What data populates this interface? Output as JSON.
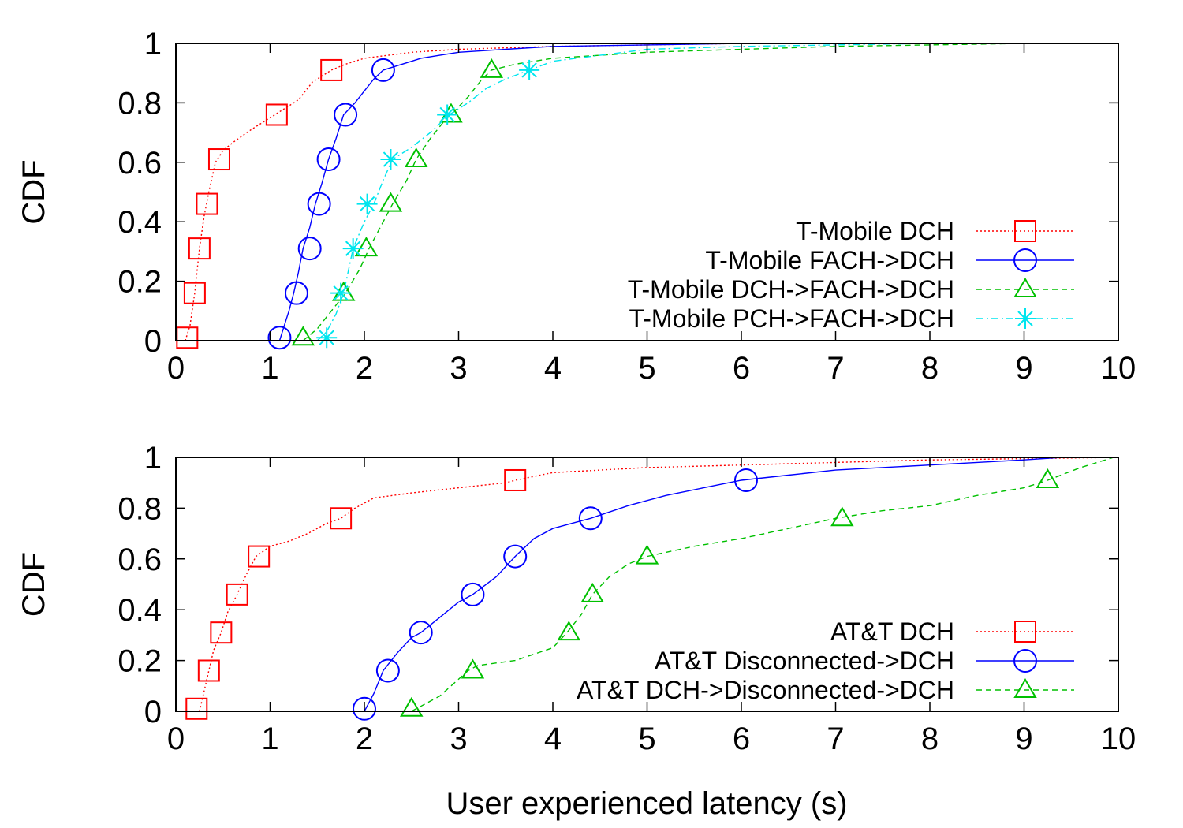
{
  "x_axis_title": "User experienced latency (s)",
  "chart_data": [
    {
      "type": "line",
      "title": "",
      "xlabel": "",
      "ylabel": "CDF",
      "xlim": [
        0,
        10
      ],
      "ylim": [
        0,
        1
      ],
      "xticks": [
        0,
        1,
        2,
        3,
        4,
        5,
        6,
        7,
        8,
        9,
        10
      ],
      "yticks": [
        0,
        0.2,
        0.4,
        0.6,
        0.8,
        1
      ],
      "grid": false,
      "legend_position": "bottom-right",
      "series": [
        {
          "name": "T-Mobile DCH",
          "color": "#ff0000",
          "dash": "dotted",
          "marker": "square",
          "x": [
            0.1,
            0.15,
            0.2,
            0.25,
            0.3,
            0.35,
            0.42,
            0.5,
            0.62,
            0.8,
            1.0,
            1.1,
            1.3,
            1.45,
            1.6,
            1.65,
            1.8,
            2.0,
            2.5,
            3.0,
            4.0,
            5.0,
            6.0,
            7.0,
            8.0,
            9.0,
            10.0
          ],
          "y": [
            0,
            0.05,
            0.16,
            0.31,
            0.42,
            0.5,
            0.6,
            0.64,
            0.67,
            0.71,
            0.75,
            0.77,
            0.81,
            0.87,
            0.9,
            0.91,
            0.93,
            0.95,
            0.97,
            0.98,
            0.99,
            0.995,
            1.0,
            1.0,
            1.0,
            1.0,
            1.0
          ],
          "markers": [
            [
              0.12,
              0.01
            ],
            [
              0.2,
              0.16
            ],
            [
              0.25,
              0.31
            ],
            [
              0.33,
              0.46
            ],
            [
              0.46,
              0.61
            ],
            [
              1.07,
              0.76
            ],
            [
              1.65,
              0.91
            ]
          ]
        },
        {
          "name": "T-Mobile FACH->DCH",
          "color": "#0000ff",
          "dash": "solid",
          "marker": "circle",
          "x": [
            1.1,
            1.15,
            1.2,
            1.25,
            1.3,
            1.35,
            1.42,
            1.48,
            1.55,
            1.62,
            1.7,
            1.78,
            1.9,
            2.0,
            2.1,
            2.2,
            2.4,
            2.6,
            2.8,
            3.0,
            3.5,
            4.0,
            5.0,
            6.0,
            8.0,
            10.0
          ],
          "y": [
            0,
            0.05,
            0.1,
            0.16,
            0.23,
            0.31,
            0.38,
            0.46,
            0.53,
            0.61,
            0.68,
            0.76,
            0.8,
            0.84,
            0.88,
            0.91,
            0.93,
            0.95,
            0.96,
            0.97,
            0.98,
            0.99,
            0.995,
            1.0,
            1.0,
            1.0
          ],
          "markers": [
            [
              1.1,
              0.01
            ],
            [
              1.28,
              0.16
            ],
            [
              1.42,
              0.31
            ],
            [
              1.52,
              0.46
            ],
            [
              1.62,
              0.61
            ],
            [
              1.8,
              0.76
            ],
            [
              2.2,
              0.91
            ]
          ]
        },
        {
          "name": "T-Mobile DCH->FACH->DCH",
          "color": "#00c000",
          "dash": "dashed",
          "marker": "triangle",
          "x": [
            1.35,
            1.5,
            1.65,
            1.8,
            1.95,
            2.05,
            2.2,
            2.3,
            2.45,
            2.55,
            2.7,
            2.85,
            2.95,
            3.1,
            3.25,
            3.35,
            3.6,
            4.0,
            4.5,
            5.0,
            6.0,
            7.0,
            8.0,
            9.0,
            10.0
          ],
          "y": [
            0,
            0.04,
            0.1,
            0.16,
            0.24,
            0.31,
            0.4,
            0.46,
            0.54,
            0.61,
            0.68,
            0.74,
            0.77,
            0.82,
            0.88,
            0.91,
            0.93,
            0.95,
            0.96,
            0.97,
            0.98,
            0.99,
            0.995,
            1.0,
            1.0
          ],
          "markers": [
            [
              1.35,
              0.01
            ],
            [
              1.78,
              0.16
            ],
            [
              2.02,
              0.31
            ],
            [
              2.28,
              0.46
            ],
            [
              2.55,
              0.61
            ],
            [
              2.92,
              0.76
            ],
            [
              3.35,
              0.91
            ]
          ]
        },
        {
          "name": "T-Mobile PCH->FACH->DCH",
          "color": "#00e5ee",
          "dash": "dashdot",
          "marker": "star",
          "x": [
            1.5,
            1.6,
            1.7,
            1.78,
            1.88,
            2.0,
            2.1,
            2.2,
            2.3,
            2.5,
            2.7,
            2.9,
            3.1,
            3.3,
            3.5,
            3.75,
            4.0,
            4.5,
            5.0,
            6.0,
            7.0,
            8.0,
            9.0,
            10.0
          ],
          "y": [
            0,
            0.03,
            0.09,
            0.16,
            0.31,
            0.4,
            0.46,
            0.54,
            0.61,
            0.65,
            0.7,
            0.76,
            0.8,
            0.85,
            0.88,
            0.91,
            0.94,
            0.96,
            0.98,
            0.99,
            0.995,
            1.0,
            1.0,
            1.0
          ],
          "markers": [
            [
              1.6,
              0.01
            ],
            [
              1.75,
              0.16
            ],
            [
              1.88,
              0.31
            ],
            [
              2.03,
              0.46
            ],
            [
              2.28,
              0.61
            ],
            [
              2.88,
              0.76
            ],
            [
              3.75,
              0.91
            ]
          ]
        }
      ]
    },
    {
      "type": "line",
      "title": "",
      "xlabel": "User experienced latency (s)",
      "ylabel": "CDF",
      "xlim": [
        0,
        10
      ],
      "ylim": [
        0,
        1
      ],
      "xticks": [
        0,
        1,
        2,
        3,
        4,
        5,
        6,
        7,
        8,
        9,
        10
      ],
      "yticks": [
        0,
        0.2,
        0.4,
        0.6,
        0.8,
        1
      ],
      "grid": false,
      "legend_position": "bottom-right",
      "series": [
        {
          "name": "AT&T DCH",
          "color": "#ff0000",
          "dash": "dotted",
          "marker": "square",
          "x": [
            0.25,
            0.3,
            0.35,
            0.4,
            0.48,
            0.55,
            0.65,
            0.75,
            0.85,
            1.0,
            1.2,
            1.4,
            1.6,
            1.75,
            1.9,
            2.1,
            2.5,
            3.0,
            3.5,
            3.6,
            4.0,
            5.0,
            6.0,
            7.0,
            8.0,
            9.0,
            10.0
          ],
          "y": [
            0,
            0.08,
            0.16,
            0.24,
            0.31,
            0.39,
            0.46,
            0.54,
            0.61,
            0.65,
            0.67,
            0.7,
            0.74,
            0.76,
            0.8,
            0.84,
            0.86,
            0.88,
            0.9,
            0.91,
            0.94,
            0.96,
            0.97,
            0.98,
            0.99,
            0.995,
            1.0
          ],
          "markers": [
            [
              0.22,
              0.01
            ],
            [
              0.35,
              0.16
            ],
            [
              0.48,
              0.31
            ],
            [
              0.65,
              0.46
            ],
            [
              0.88,
              0.61
            ],
            [
              1.75,
              0.76
            ],
            [
              3.6,
              0.91
            ]
          ]
        },
        {
          "name": "AT&T Disconnected->DCH",
          "color": "#0000ff",
          "dash": "solid",
          "marker": "circle",
          "x": [
            2.0,
            2.1,
            2.2,
            2.35,
            2.5,
            2.6,
            2.8,
            3.0,
            3.15,
            3.4,
            3.6,
            3.8,
            4.0,
            4.2,
            4.4,
            4.8,
            5.2,
            5.6,
            6.0,
            6.5,
            7.0,
            8.0,
            9.0,
            9.4,
            10.0
          ],
          "y": [
            0,
            0.07,
            0.16,
            0.23,
            0.29,
            0.31,
            0.37,
            0.43,
            0.46,
            0.53,
            0.61,
            0.68,
            0.72,
            0.74,
            0.76,
            0.81,
            0.85,
            0.88,
            0.91,
            0.93,
            0.95,
            0.97,
            0.99,
            1.0,
            1.0
          ],
          "markers": [
            [
              2.0,
              0.01
            ],
            [
              2.25,
              0.16
            ],
            [
              2.6,
              0.31
            ],
            [
              3.15,
              0.46
            ],
            [
              3.6,
              0.61
            ],
            [
              4.4,
              0.76
            ],
            [
              6.05,
              0.91
            ]
          ]
        },
        {
          "name": "AT&T DCH->Disconnected->DCH",
          "color": "#00c000",
          "dash": "dashed",
          "marker": "triangle",
          "x": [
            2.5,
            2.8,
            3.1,
            3.2,
            3.6,
            4.0,
            4.15,
            4.3,
            4.42,
            4.6,
            4.8,
            5.0,
            5.5,
            6.0,
            6.5,
            7.0,
            7.5,
            8.0,
            8.5,
            9.0,
            9.25,
            9.6,
            9.95
          ],
          "y": [
            0,
            0.06,
            0.16,
            0.18,
            0.2,
            0.25,
            0.31,
            0.38,
            0.46,
            0.53,
            0.58,
            0.61,
            0.65,
            0.68,
            0.72,
            0.76,
            0.79,
            0.81,
            0.85,
            0.88,
            0.91,
            0.96,
            1.0
          ],
          "markers": [
            [
              2.5,
              0.01
            ],
            [
              3.15,
              0.16
            ],
            [
              4.17,
              0.31
            ],
            [
              4.42,
              0.46
            ],
            [
              5.0,
              0.61
            ],
            [
              7.07,
              0.76
            ],
            [
              9.25,
              0.91
            ]
          ]
        }
      ]
    }
  ]
}
